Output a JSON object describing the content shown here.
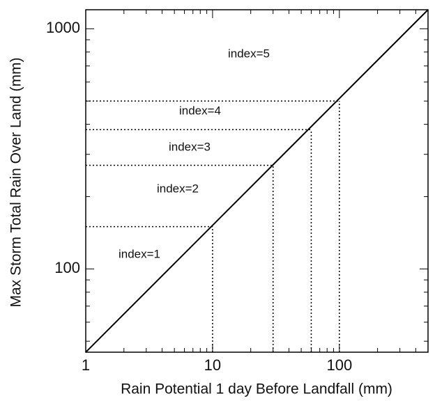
{
  "chart_data": {
    "type": "line",
    "xlabel": "Rain Potential 1 day Before Landfall (mm)",
    "ylabel": "Max Storm Total Rain Over Land (mm)",
    "log_x": true,
    "log_y": true,
    "minor_ticks": true,
    "xlim": [
      1,
      500
    ],
    "ylim": [
      45,
      1200
    ],
    "xticks": [
      1,
      10,
      100
    ],
    "yticks": [
      100,
      1000
    ],
    "x": [
      1,
      500
    ],
    "series": [
      {
        "color": "#000000",
        "values": [
          45,
          1200
        ]
      }
    ],
    "thresholds": {
      "x": [
        10,
        30,
        60,
        100
      ],
      "y": [
        150,
        270,
        380,
        500
      ]
    },
    "annotations": [
      "index=1",
      "index=2",
      "index=3",
      "index=4",
      "index=5"
    ]
  }
}
